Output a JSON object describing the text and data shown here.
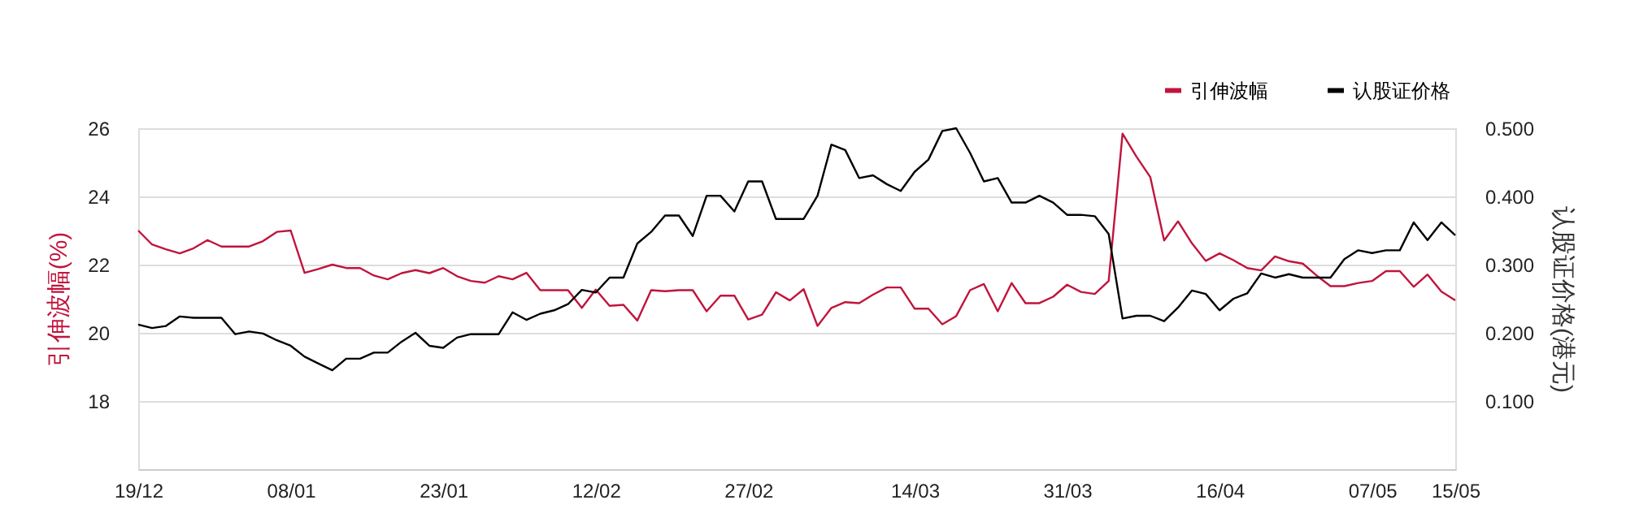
{
  "chart_data": {
    "type": "line",
    "categories": [
      "19/12",
      null,
      null,
      null,
      null,
      null,
      null,
      null,
      null,
      null,
      null,
      "08/01",
      null,
      null,
      null,
      null,
      null,
      null,
      null,
      null,
      null,
      null,
      "23/01",
      null,
      null,
      null,
      null,
      null,
      null,
      null,
      null,
      null,
      null,
      "12/02",
      null,
      null,
      null,
      null,
      null,
      null,
      null,
      null,
      null,
      null,
      "27/02",
      null,
      null,
      null,
      null,
      null,
      null,
      null,
      null,
      null,
      null,
      null,
      "14/03",
      null,
      null,
      null,
      null,
      null,
      null,
      null,
      null,
      null,
      null,
      "31/03",
      null,
      null,
      null,
      null,
      null,
      null,
      null,
      null,
      null,
      null,
      "16/04",
      null,
      null,
      null,
      null,
      null,
      null,
      null,
      null,
      null,
      null,
      "07/05",
      null,
      null,
      null,
      null,
      null,
      "15/05"
    ],
    "series": [
      {
        "name": "引伸波幅",
        "color": "#c0143c",
        "axis": "y",
        "values": [
          23.0,
          22.59,
          22.45,
          22.33,
          22.48,
          22.72,
          22.53,
          22.53,
          22.53,
          22.69,
          22.96,
          23.0,
          21.76,
          21.87,
          22.0,
          21.9,
          21.9,
          21.68,
          21.57,
          21.75,
          21.84,
          21.75,
          21.9,
          21.66,
          21.52,
          21.47,
          21.66,
          21.57,
          21.76,
          21.25,
          21.25,
          21.25,
          20.73,
          21.27,
          20.79,
          20.82,
          20.36,
          21.25,
          21.22,
          21.25,
          21.25,
          20.63,
          21.09,
          21.09,
          20.39,
          20.53,
          21.19,
          20.95,
          21.28,
          20.2,
          20.73,
          20.9,
          20.87,
          21.12,
          21.33,
          21.33,
          20.71,
          20.71,
          20.25,
          20.49,
          21.25,
          21.43,
          20.63,
          21.46,
          20.87,
          20.87,
          21.06,
          21.41,
          21.2,
          21.14,
          21.52,
          25.84,
          25.17,
          24.57,
          22.71,
          23.27,
          22.63,
          22.11,
          22.33,
          22.13,
          21.9,
          21.83,
          22.24,
          22.1,
          22.03,
          21.68,
          21.37,
          21.37,
          21.46,
          21.52,
          21.81,
          21.81,
          21.35,
          21.71,
          21.21,
          20.95
        ]
      },
      {
        "name": "认股证价格",
        "color": "#000000",
        "axis": "y2",
        "values": [
          0.212,
          0.207,
          0.21,
          0.224,
          0.222,
          0.222,
          0.222,
          0.198,
          0.202,
          0.199,
          0.189,
          0.181,
          0.165,
          0.155,
          0.145,
          0.162,
          0.162,
          0.171,
          0.171,
          0.187,
          0.2,
          0.181,
          0.178,
          0.193,
          0.198,
          0.198,
          0.198,
          0.23,
          0.219,
          0.228,
          0.233,
          0.242,
          0.263,
          0.259,
          0.281,
          0.281,
          0.331,
          0.348,
          0.372,
          0.372,
          0.342,
          0.401,
          0.401,
          0.378,
          0.422,
          0.422,
          0.367,
          0.367,
          0.367,
          0.401,
          0.476,
          0.468,
          0.427,
          0.431,
          0.418,
          0.408,
          0.436,
          0.454,
          0.496,
          0.5,
          0.464,
          0.422,
          0.427,
          0.391,
          0.391,
          0.401,
          0.391,
          0.373,
          0.373,
          0.371,
          0.345,
          0.221,
          0.225,
          0.225,
          0.217,
          0.237,
          0.262,
          0.257,
          0.233,
          0.25,
          0.258,
          0.287,
          0.281,
          0.286,
          0.281,
          0.281,
          0.281,
          0.308,
          0.321,
          0.317,
          0.321,
          0.321,
          0.362,
          0.336,
          0.362,
          0.343
        ]
      }
    ],
    "ylabel": "引伸波幅(%)",
    "y2label": "认股证价格(港元)",
    "ylim": [
      16,
      26
    ],
    "yticks": [
      18,
      20,
      22,
      24,
      26
    ],
    "y2lim": [
      0,
      0.5
    ],
    "y2ticks": [
      {
        "value": 0.1,
        "label": "0.100"
      },
      {
        "value": 0.2,
        "label": "0.200"
      },
      {
        "value": 0.3,
        "label": "0.300"
      },
      {
        "value": 0.4,
        "label": "0.400"
      },
      {
        "value": 0.5,
        "label": "0.500"
      }
    ],
    "grid": "y",
    "legend": "top right"
  }
}
